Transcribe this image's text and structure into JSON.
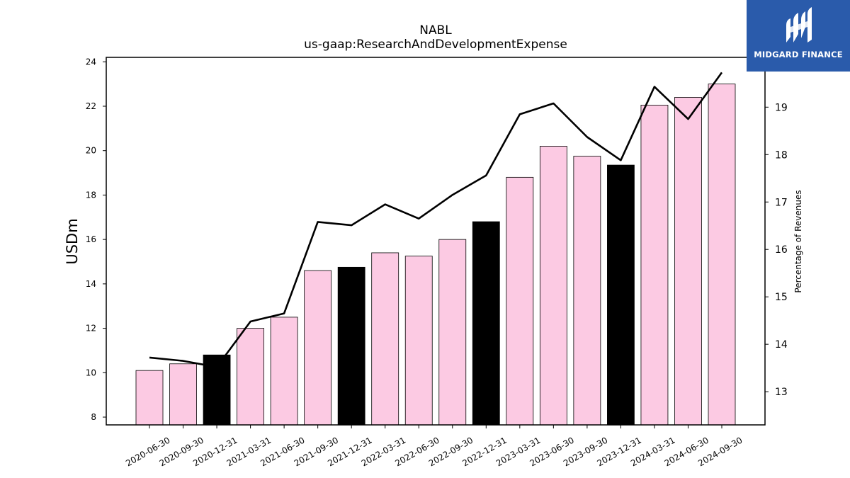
{
  "brand": {
    "name": "MIDGARD FINANCE",
    "bg_color": "#2a5bab"
  },
  "chart_data": {
    "type": "bar",
    "title": "NABL",
    "subtitle": "us-gaap:ResearchAndDevelopmentExpense",
    "ylabel": "USDm",
    "ylabel_right": "Percentage of Revenues",
    "ylim": [
      7.65,
      24.2
    ],
    "ylim_right": [
      12.3,
      20.05
    ],
    "yticks": [
      8,
      10,
      12,
      14,
      16,
      18,
      20,
      22,
      24
    ],
    "yticks_right": [
      13,
      14,
      15,
      16,
      17,
      18,
      19
    ],
    "grid": false,
    "categories": [
      "2020-06-30",
      "2020-09-30",
      "2020-12-31",
      "2021-03-31",
      "2021-06-30",
      "2021-09-30",
      "2021-12-31",
      "2022-03-31",
      "2022-06-30",
      "2022-09-30",
      "2022-12-31",
      "2023-03-31",
      "2023-06-30",
      "2023-09-30",
      "2023-12-31",
      "2024-03-31",
      "2024-06-30",
      "2024-09-30"
    ],
    "series": [
      {
        "axis": "left",
        "kind": "bar",
        "values": [
          10.1,
          10.4,
          10.8,
          12.0,
          12.5,
          14.6,
          14.75,
          15.4,
          15.25,
          16.0,
          16.8,
          18.8,
          20.2,
          19.75,
          19.35,
          22.05,
          22.4,
          23.0
        ],
        "colors": [
          "#fccae3",
          "#fccae3",
          "#000000",
          "#fccae3",
          "#fccae3",
          "#fccae3",
          "#000000",
          "#fccae3",
          "#fccae3",
          "#fccae3",
          "#000000",
          "#fccae3",
          "#fccae3",
          "#fccae3",
          "#000000",
          "#fccae3",
          "#fccae3",
          "#fccae3"
        ]
      },
      {
        "axis": "right",
        "kind": "line",
        "color": "#000000",
        "values": [
          13.72,
          13.65,
          13.52,
          14.48,
          14.65,
          16.58,
          16.51,
          16.95,
          16.65,
          17.15,
          17.56,
          18.85,
          19.08,
          18.37,
          17.88,
          19.43,
          18.75,
          19.73
        ]
      }
    ]
  }
}
